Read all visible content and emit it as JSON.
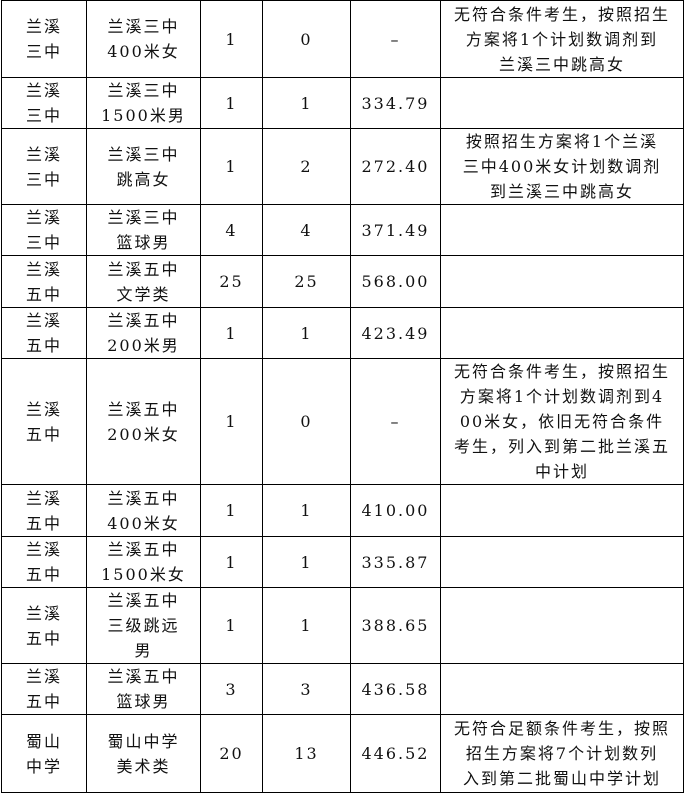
{
  "rows": [
    {
      "school": "兰溪\n三中",
      "item": "兰溪三中\n400米女",
      "plan": "1",
      "enrolled": "0",
      "score": "–",
      "note": "无符合条件考生，按照招生\n方案将1个计划数调剂到\n兰溪三中跳高女"
    },
    {
      "school": "兰溪\n三中",
      "item": "兰溪三中\n1500米男",
      "plan": "1",
      "enrolled": "1",
      "score": "334.79",
      "note": ""
    },
    {
      "school": "兰溪\n三中",
      "item": "兰溪三中\n跳高女",
      "plan": "1",
      "enrolled": "2",
      "score": "272.40",
      "note": "按照招生方案将1个兰溪\n三中400米女计划数调剂\n到兰溪三中跳高女"
    },
    {
      "school": "兰溪\n三中",
      "item": "兰溪三中\n篮球男",
      "plan": "4",
      "enrolled": "4",
      "score": "371.49",
      "note": ""
    },
    {
      "school": "兰溪\n五中",
      "item": "兰溪五中\n文学类",
      "plan": "25",
      "enrolled": "25",
      "score": "568.00",
      "note": ""
    },
    {
      "school": "兰溪\n五中",
      "item": "兰溪五中\n200米男",
      "plan": "1",
      "enrolled": "1",
      "score": "423.49",
      "note": ""
    },
    {
      "school": "兰溪\n五中",
      "item": "兰溪五中\n200米女",
      "plan": "1",
      "enrolled": "0",
      "score": "–",
      "note": "无符合条件考生，按照招生\n方案将1个计划数调剂到4\n00米女，依旧无符合条件\n考生，列入到第二批兰溪五\n中计划"
    },
    {
      "school": "兰溪\n五中",
      "item": "兰溪五中\n400米女",
      "plan": "1",
      "enrolled": "1",
      "score": "410.00",
      "note": ""
    },
    {
      "school": "兰溪\n五中",
      "item": "兰溪五中\n1500米女",
      "plan": "1",
      "enrolled": "1",
      "score": "335.87",
      "note": ""
    },
    {
      "school": "兰溪\n五中",
      "item": "兰溪五中\n三级跳远\n男",
      "plan": "1",
      "enrolled": "1",
      "score": "388.65",
      "note": ""
    },
    {
      "school": "兰溪\n五中",
      "item": "兰溪五中\n篮球男",
      "plan": "3",
      "enrolled": "3",
      "score": "436.58",
      "note": ""
    },
    {
      "school": "蜀山\n中学",
      "item": "蜀山中学\n美术类",
      "plan": "20",
      "enrolled": "13",
      "score": "446.52",
      "note": "无符合足额条件考生，按照\n招生方案将7个计划数列\n入到第二批蜀山中学计划"
    }
  ]
}
